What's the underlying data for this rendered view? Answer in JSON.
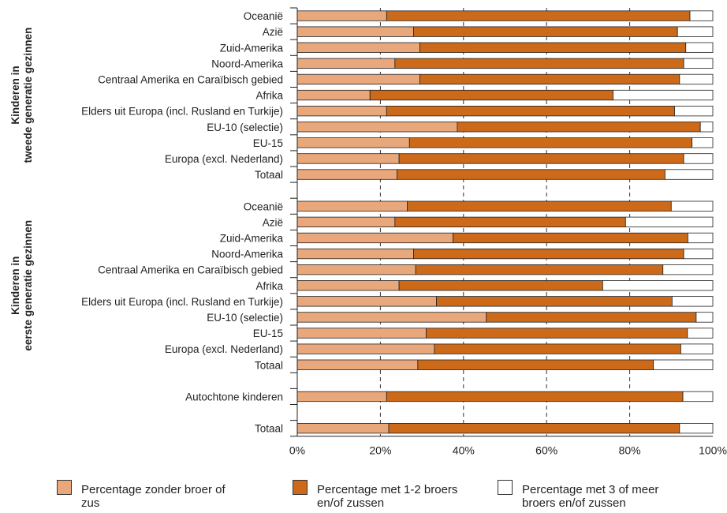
{
  "chart_data": {
    "type": "bar",
    "orientation": "horizontal",
    "stacked": true,
    "xlim": [
      0,
      100
    ],
    "xticks": [
      "0%",
      "20%",
      "40%",
      "60%",
      "80%",
      "100%"
    ],
    "grid": "vertical dashed at 20, 40, 60, 80",
    "legend_position": "bottom",
    "groups": [
      {
        "label": "Kinderen in tweede generatie gezinnen",
        "rows": [
          {
            "label": "Oceanië",
            "values": [
              21.5,
              73.0,
              5.5
            ]
          },
          {
            "label": "Azië",
            "values": [
              28.0,
              63.5,
              8.5
            ]
          },
          {
            "label": "Zuid-Amerika",
            "values": [
              29.5,
              64.0,
              6.5
            ]
          },
          {
            "label": "Noord-Amerika",
            "values": [
              23.5,
              69.5,
              7.0
            ]
          },
          {
            "label": "Centraal Amerika en Caraïbisch gebied",
            "values": [
              29.5,
              62.5,
              8.0
            ]
          },
          {
            "label": "Afrika",
            "values": [
              17.5,
              58.5,
              24.0
            ]
          },
          {
            "label": "Elders uit Europa (incl. Rusland en Turkije)",
            "values": [
              21.5,
              69.3,
              9.2
            ]
          },
          {
            "label": "EU-10 (selectie)",
            "values": [
              38.5,
              58.5,
              3.0
            ]
          },
          {
            "label": "EU-15",
            "values": [
              27.0,
              68.0,
              5.0
            ]
          },
          {
            "label": "Europa (excl. Nederland)",
            "values": [
              24.5,
              68.5,
              7.0
            ]
          },
          {
            "label": "Totaal",
            "values": [
              24.0,
              64.5,
              11.5
            ]
          }
        ]
      },
      {
        "label": "Kinderen in eerste generatie gezinnen",
        "rows": [
          {
            "label": "Oceanië",
            "values": [
              26.5,
              63.5,
              10.0
            ]
          },
          {
            "label": "Azië",
            "values": [
              23.5,
              55.5,
              21.0
            ]
          },
          {
            "label": "Zuid-Amerika",
            "values": [
              37.5,
              56.5,
              6.0
            ]
          },
          {
            "label": "Noord-Amerika",
            "values": [
              28.0,
              65.0,
              7.0
            ]
          },
          {
            "label": "Centraal Amerika en Caraïbisch gebied",
            "values": [
              28.5,
              59.5,
              12.0
            ]
          },
          {
            "label": "Afrika",
            "values": [
              24.5,
              49.0,
              26.5
            ]
          },
          {
            "label": "Elders uit Europa (incl. Rusland en Turkije)",
            "values": [
              33.5,
              56.7,
              9.8
            ]
          },
          {
            "label": "EU-10 (selectie)",
            "values": [
              45.5,
              50.5,
              4.0
            ]
          },
          {
            "label": "EU-15",
            "values": [
              31.0,
              62.9,
              6.1
            ]
          },
          {
            "label": "Europa (excl. Nederland)",
            "values": [
              33.0,
              59.3,
              7.7
            ]
          },
          {
            "label": "Totaal",
            "values": [
              29.0,
              56.7,
              14.3
            ]
          }
        ]
      },
      {
        "label": "",
        "rows": [
          {
            "label": "Autochtone kinderen",
            "values": [
              21.5,
              71.3,
              7.2
            ]
          }
        ]
      },
      {
        "label": "",
        "rows": [
          {
            "label": "Totaal",
            "values": [
              22.0,
              70.0,
              8.0
            ]
          }
        ]
      }
    ],
    "series": [
      {
        "name": "Percentage zonder broer of zus",
        "color": "#e8a87c"
      },
      {
        "name": "Percentage met 1-2 broers en/of zussen",
        "color": "#cc6a1a"
      },
      {
        "name": "Percentage met 3 of meer broers en/of zussen",
        "color": "#ffffff"
      }
    ]
  }
}
